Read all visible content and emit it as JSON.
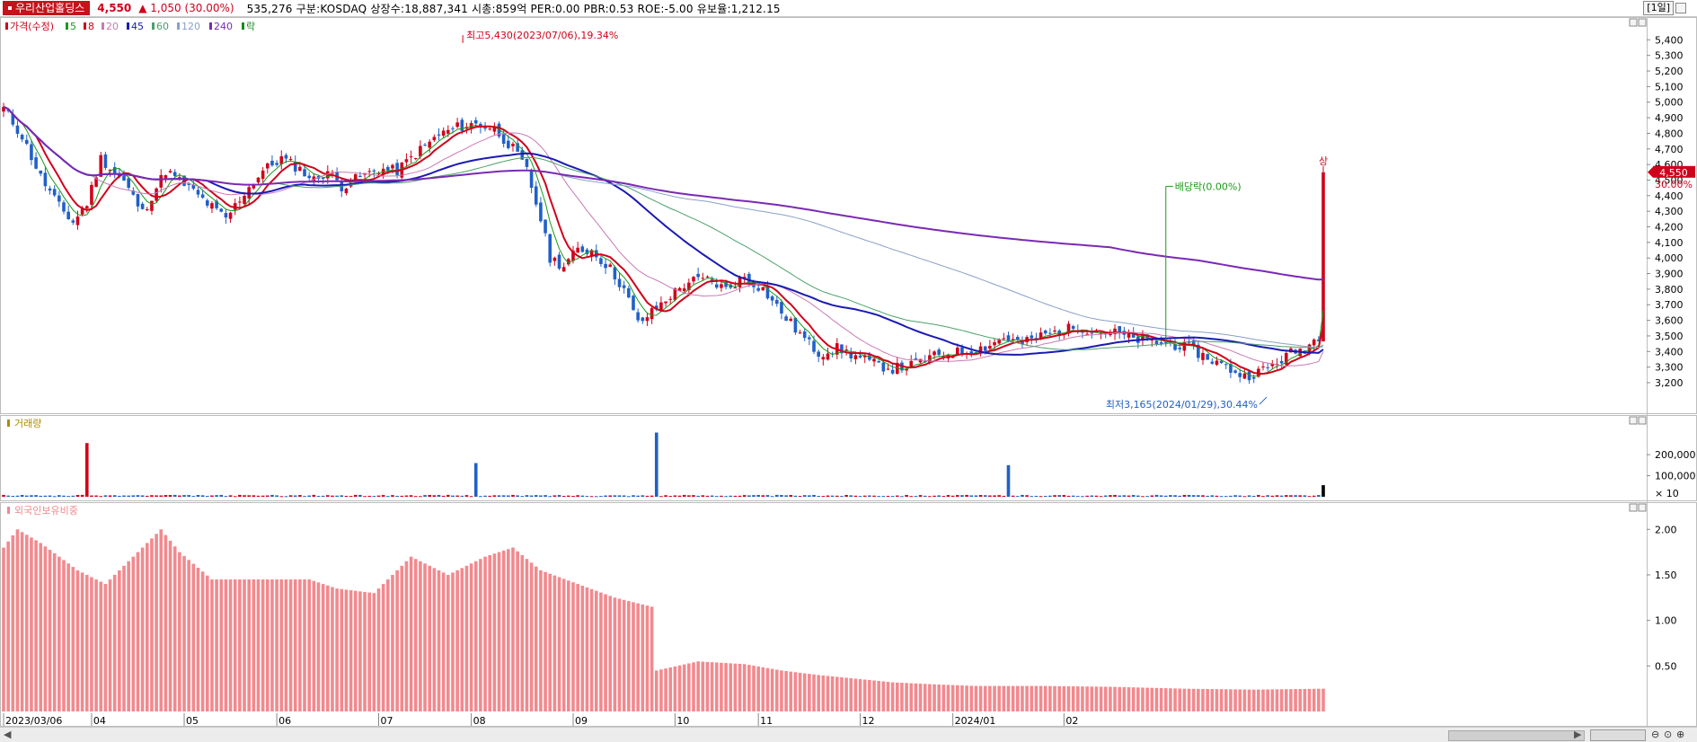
{
  "header": {
    "stock_name": "우리산업홀딩스",
    "price": "4,550",
    "change": "▲ 1,050 (30.00%)",
    "info": "535,276  구분:KOSDAQ 상장수:18,887,341 시총:859억 PER:0.00 PBR:0.53 ROE:-5.00 유보율:1,212.15",
    "period": "[1일]"
  },
  "legend": {
    "price_label": "가격(수정)",
    "ma": [
      {
        "label": "5",
        "color": "#1a9a1a"
      },
      {
        "label": "8",
        "color": "#d0021b"
      },
      {
        "label": "20",
        "color": "#c87ab4"
      },
      {
        "label": "45",
        "color": "#1a1ab4"
      },
      {
        "label": "60",
        "color": "#4aa06a"
      },
      {
        "label": "120",
        "color": "#8aa0c8"
      },
      {
        "label": "240",
        "color": "#7a2ab4"
      },
      {
        "label": "락",
        "color": "#1a8a1a"
      }
    ]
  },
  "annotations": {
    "high": "최고5,430(2023/07/06),19.34%",
    "low": "최저3,165(2024/01/29),30.44%",
    "dividend": "배당락(0.00%)",
    "limit_up": "상",
    "last_price_tag": "4,550",
    "last_pct_tag": "30.00%"
  },
  "panels": {
    "volume_title": "거래량",
    "foreign_title": "외국인보유비중"
  },
  "colors": {
    "up": "#d0021b",
    "down": "#2060c8",
    "foreign": "#f2898e"
  },
  "chart_data": [
    {
      "type": "candlestick",
      "title": "가격(수정)",
      "x_ticks": [
        "2023/03/06",
        "04",
        "05",
        "06",
        "07",
        "08",
        "09",
        "10",
        "11",
        "12",
        "2024/01",
        "02"
      ],
      "y_ticks": [
        3200,
        3300,
        3400,
        3500,
        3600,
        3700,
        3800,
        3900,
        4000,
        4100,
        4200,
        4300,
        4400,
        4500,
        4600,
        4700,
        4800,
        4900,
        5000,
        5100,
        5200,
        5300,
        5400
      ],
      "ylim": [
        3050,
        5500
      ],
      "anchors": [
        [
          0,
          4960
        ],
        [
          4,
          4780
        ],
        [
          8,
          4520
        ],
        [
          12,
          4330
        ],
        [
          15,
          4230
        ],
        [
          18,
          4350
        ],
        [
          21,
          4640
        ],
        [
          26,
          4490
        ],
        [
          30,
          4290
        ],
        [
          35,
          4560
        ],
        [
          40,
          4450
        ],
        [
          44,
          4350
        ],
        [
          48,
          4250
        ],
        [
          52,
          4420
        ],
        [
          56,
          4560
        ],
        [
          60,
          4640
        ],
        [
          64,
          4570
        ],
        [
          67,
          4500
        ],
        [
          70,
          4560
        ],
        [
          73,
          4460
        ],
        [
          77,
          4520
        ],
        [
          81,
          4570
        ],
        [
          85,
          4560
        ],
        [
          89,
          4670
        ],
        [
          94,
          4790
        ],
        [
          98,
          4840
        ],
        [
          102,
          4860
        ],
        [
          106,
          4830
        ],
        [
          110,
          4700
        ],
        [
          113,
          4560
        ],
        [
          116,
          4250
        ],
        [
          118,
          4000
        ],
        [
          121,
          3950
        ],
        [
          124,
          4050
        ],
        [
          127,
          4050
        ],
        [
          131,
          3930
        ],
        [
          134,
          3800
        ],
        [
          137,
          3580
        ],
        [
          140,
          3650
        ],
        [
          144,
          3760
        ],
        [
          148,
          3850
        ],
        [
          152,
          3860
        ],
        [
          156,
          3800
        ],
        [
          160,
          3880
        ],
        [
          164,
          3800
        ],
        [
          168,
          3650
        ],
        [
          172,
          3510
        ],
        [
          176,
          3390
        ],
        [
          180,
          3420
        ],
        [
          184,
          3370
        ],
        [
          188,
          3320
        ],
        [
          192,
          3290
        ],
        [
          196,
          3310
        ],
        [
          200,
          3360
        ],
        [
          204,
          3390
        ],
        [
          208,
          3400
        ],
        [
          212,
          3430
        ],
        [
          216,
          3490
        ],
        [
          220,
          3450
        ],
        [
          224,
          3500
        ],
        [
          228,
          3530
        ],
        [
          232,
          3560
        ],
        [
          236,
          3530
        ],
        [
          240,
          3520
        ],
        [
          244,
          3480
        ],
        [
          248,
          3460
        ],
        [
          252,
          3450
        ],
        [
          256,
          3420
        ],
        [
          260,
          3360
        ],
        [
          264,
          3300
        ],
        [
          268,
          3240
        ],
        [
          272,
          3280
        ],
        [
          275,
          3330
        ],
        [
          278,
          3390
        ],
        [
          281,
          3420
        ],
        [
          284,
          3500
        ],
        [
          285,
          4550
        ]
      ],
      "moving_averages": [
        {
          "name": "5",
          "period": 5,
          "color": "#1a9a1a"
        },
        {
          "name": "8",
          "period": 8,
          "color": "#d0021b"
        },
        {
          "name": "20",
          "period": 20,
          "color": "#c87ab4"
        },
        {
          "name": "45",
          "period": 45,
          "color": "#1a1ab4"
        },
        {
          "name": "60",
          "period": 60,
          "color": "#4aa06a"
        },
        {
          "name": "120",
          "period": 120,
          "color": "#8aa0c8"
        },
        {
          "name": "240",
          "period": 240,
          "color": "#7a2ab4"
        }
      ],
      "high": {
        "value": 5430,
        "date": "2023/07/06"
      },
      "low": {
        "value": 3165,
        "date": "2024/01/29"
      },
      "last": 4550
    },
    {
      "type": "bar",
      "title": "거래량",
      "y_ticks": [
        100000,
        200000
      ],
      "unit_label": "× 10",
      "ylim": [
        0,
        320000
      ],
      "spikes": [
        {
          "day": 18,
          "value": 255000
        },
        {
          "day": 102,
          "value": 160000
        },
        {
          "day": 141,
          "value": 305000
        },
        {
          "day": 217,
          "value": 150000
        },
        {
          "day": 285,
          "value": 55000
        }
      ],
      "baseline": 6000
    },
    {
      "type": "bar",
      "title": "외국인보유비중",
      "y_ticks": [
        0.5,
        1.0,
        1.5,
        2.0
      ],
      "tick_labels": [
        "0.50",
        "1.00",
        "1.50",
        "2.00"
      ],
      "ylim": [
        0,
        2.2
      ],
      "anchors": [
        [
          0,
          1.8
        ],
        [
          3,
          2.0
        ],
        [
          8,
          1.85
        ],
        [
          16,
          1.55
        ],
        [
          22,
          1.4
        ],
        [
          28,
          1.7
        ],
        [
          34,
          2.0
        ],
        [
          38,
          1.75
        ],
        [
          45,
          1.45
        ],
        [
          52,
          1.45
        ],
        [
          60,
          1.45
        ],
        [
          66,
          1.45
        ],
        [
          72,
          1.35
        ],
        [
          80,
          1.3
        ],
        [
          88,
          1.7
        ],
        [
          96,
          1.5
        ],
        [
          104,
          1.7
        ],
        [
          110,
          1.8
        ],
        [
          116,
          1.55
        ],
        [
          124,
          1.4
        ],
        [
          132,
          1.25
        ],
        [
          140,
          1.15
        ],
        [
          141,
          0.45
        ],
        [
          150,
          0.55
        ],
        [
          160,
          0.52
        ],
        [
          168,
          0.45
        ],
        [
          176,
          0.4
        ],
        [
          184,
          0.36
        ],
        [
          192,
          0.32
        ],
        [
          200,
          0.3
        ],
        [
          210,
          0.28
        ],
        [
          225,
          0.28
        ],
        [
          240,
          0.27
        ],
        [
          255,
          0.25
        ],
        [
          270,
          0.24
        ],
        [
          285,
          0.25
        ]
      ]
    }
  ]
}
